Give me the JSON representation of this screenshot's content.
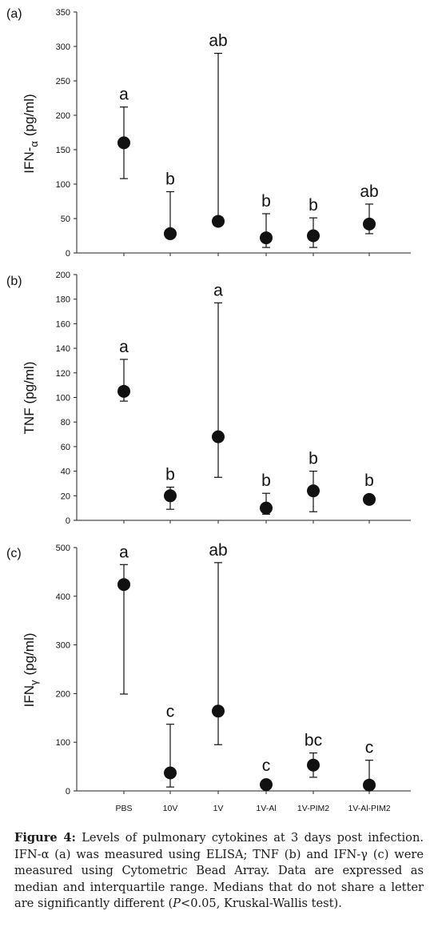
{
  "x_categories": [
    "PBS",
    "10V",
    "1V",
    "1V-Al",
    "1V-PIM2",
    "1V-Al-PIM2"
  ],
  "chart_data": [
    {
      "type": "scatter",
      "panel_label": "(a)",
      "ylabel": "IFN-α  (pg/ml)",
      "ylabel_main": "IFN-",
      "ylabel_sub": "α",
      "ylabel_unit": "(pg/ml)",
      "ylim": [
        0,
        350
      ],
      "yticks": [
        0,
        50,
        100,
        150,
        200,
        250,
        300,
        350
      ],
      "categories": [
        "PBS",
        "10V",
        "1V",
        "1V-Al",
        "1V-PIM2",
        "1V-Al-PIM2"
      ],
      "median": [
        160,
        28,
        46,
        22,
        25,
        42
      ],
      "q1": [
        108,
        28,
        46,
        8,
        8,
        28
      ],
      "q3": [
        212,
        89,
        290,
        57,
        51,
        71
      ],
      "letters": [
        "a",
        "b",
        "ab",
        "b",
        "b",
        "ab"
      ]
    },
    {
      "type": "scatter",
      "panel_label": "(b)",
      "ylabel": "TNF (pg/ml)",
      "ylabel_main": "TNF",
      "ylabel_sub": "",
      "ylabel_unit": "(pg/ml)",
      "ylim": [
        0,
        200
      ],
      "yticks": [
        0,
        20,
        40,
        60,
        80,
        100,
        120,
        140,
        160,
        180,
        200
      ],
      "categories": [
        "PBS",
        "10V",
        "1V",
        "1V-Al",
        "1V-PIM2",
        "1V-Al-PIM2"
      ],
      "median": [
        105,
        20,
        68,
        10,
        24,
        17
      ],
      "q1": [
        97,
        9,
        35,
        5,
        7,
        14
      ],
      "q3": [
        131,
        27,
        177,
        22,
        40,
        17
      ],
      "letters": [
        "a",
        "b",
        "a",
        "b",
        "b",
        "b"
      ]
    },
    {
      "type": "scatter",
      "panel_label": "(c)",
      "ylabel": "IFN-γ  (pg/ml)",
      "ylabel_main": "IFN",
      "ylabel_sub": "γ",
      "ylabel_unit": "(pg/ml)",
      "ylim": [
        0,
        500
      ],
      "yticks": [
        0,
        100,
        200,
        300,
        400,
        500
      ],
      "categories": [
        "PBS",
        "10V",
        "1V",
        "1V-Al",
        "1V-PIM2",
        "1V-Al-PIM2"
      ],
      "median": [
        424,
        37,
        164,
        13,
        53,
        12
      ],
      "q1": [
        199,
        8,
        95,
        13,
        28,
        12
      ],
      "q3": [
        465,
        137,
        469,
        13,
        78,
        63
      ],
      "letters": [
        "a",
        "c",
        "ab",
        "c",
        "bc",
        "c"
      ]
    }
  ],
  "caption": {
    "lead": "Figure 4:",
    "part1": " Levels of pulmonary cytokines at 3 days post infection. IFN-α (a) was measured using ELISA; TNF (b) and IFN-γ (c) were measured using Cytometric Bead Array. Data are expressed as median and interquartile range. Medians that do not share a letter are significantly different (",
    "p_symbol": "P",
    "part2": "<0.05, Kruskal-Wallis test)."
  },
  "colors": {
    "ink": "#111111",
    "axis": "#222222",
    "caption": "#1a1a1a"
  }
}
